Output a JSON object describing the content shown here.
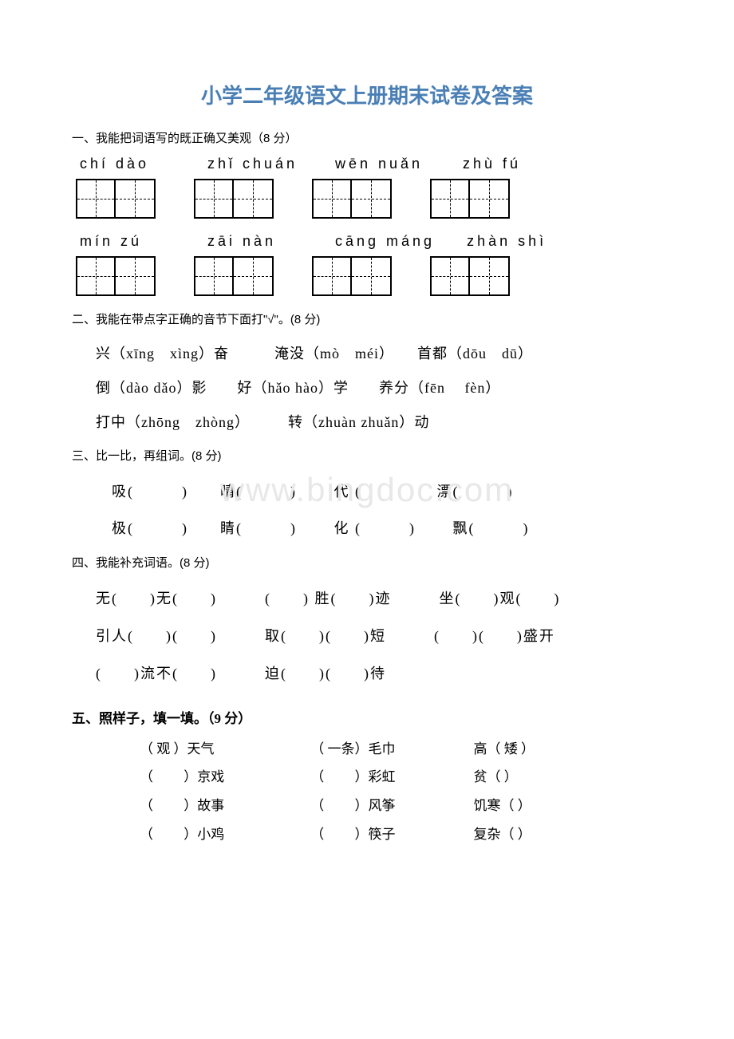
{
  "title": "小学二年级语文上册期末试卷及答案",
  "watermark": "www.bingdoc.com",
  "sections": {
    "s1": {
      "heading": "一、我能把词语写的既正确又美观（8 分）",
      "row1": [
        "chí  dào",
        "zhǐ   chuán",
        "wēn  nuǎn",
        "zhù  fú"
      ],
      "row2": [
        "mín zú",
        "zāi   nàn",
        "cāng máng",
        "zhàn  shì"
      ]
    },
    "s2": {
      "heading": "二、我能在带点字正确的音节下面打\"√\"。(8 分)",
      "line1": "兴（xīng　xìng）奋　　　淹没（mò　méi）　　首都（dōu　dū）",
      "line2": "倒（dào  dǎo）影　　好（hǎo  hào）学　　养分（fēn　 fèn）",
      "line3": "打中（zhōng　zhòng）　　　转（zhuàn  zhuǎn）动"
    },
    "s3": {
      "heading": "三、比一比，再组词。(8 分)",
      "line1": "吸(　　　)　　晴(　　　)　　 代 (　　　)　   漂(　　　)",
      "line2": "极(　　　)　　睛(　　　)　　 化 (　　　)　　 飘(　　　)"
    },
    "s4": {
      "heading": "四、我能补充词语。(8 分)",
      "line1": "无(　　)无(　　)　　　(　　) 胜(　　)迹　　　坐(　　)观(　　)",
      "line2": "引人(　　)(　　)　　　取(　　)(　　)短　　　(　　)(　　)盛开",
      "line3": "(　　)流不(　　)　　　迫(　　)(　　)待"
    },
    "s5": {
      "heading": "五、照样子，填一填。（9 分）",
      "rows": [
        {
          "c1": "（  观  ）天气",
          "c2": "（ 一条）毛巾",
          "c3": "高（   矮   ）"
        },
        {
          "c1": "（　　 ）京戏",
          "c2": "（　　 ）彩虹",
          "c3": "贫（        ）"
        },
        {
          "c1": "（　　 ）故事",
          "c2": "（　　 ）风筝",
          "c3": "饥寒（       ）"
        },
        {
          "c1": "（　　 ）小鸡",
          "c2": "（　　 ）筷子",
          "c3": "复杂（       ）"
        }
      ]
    }
  }
}
